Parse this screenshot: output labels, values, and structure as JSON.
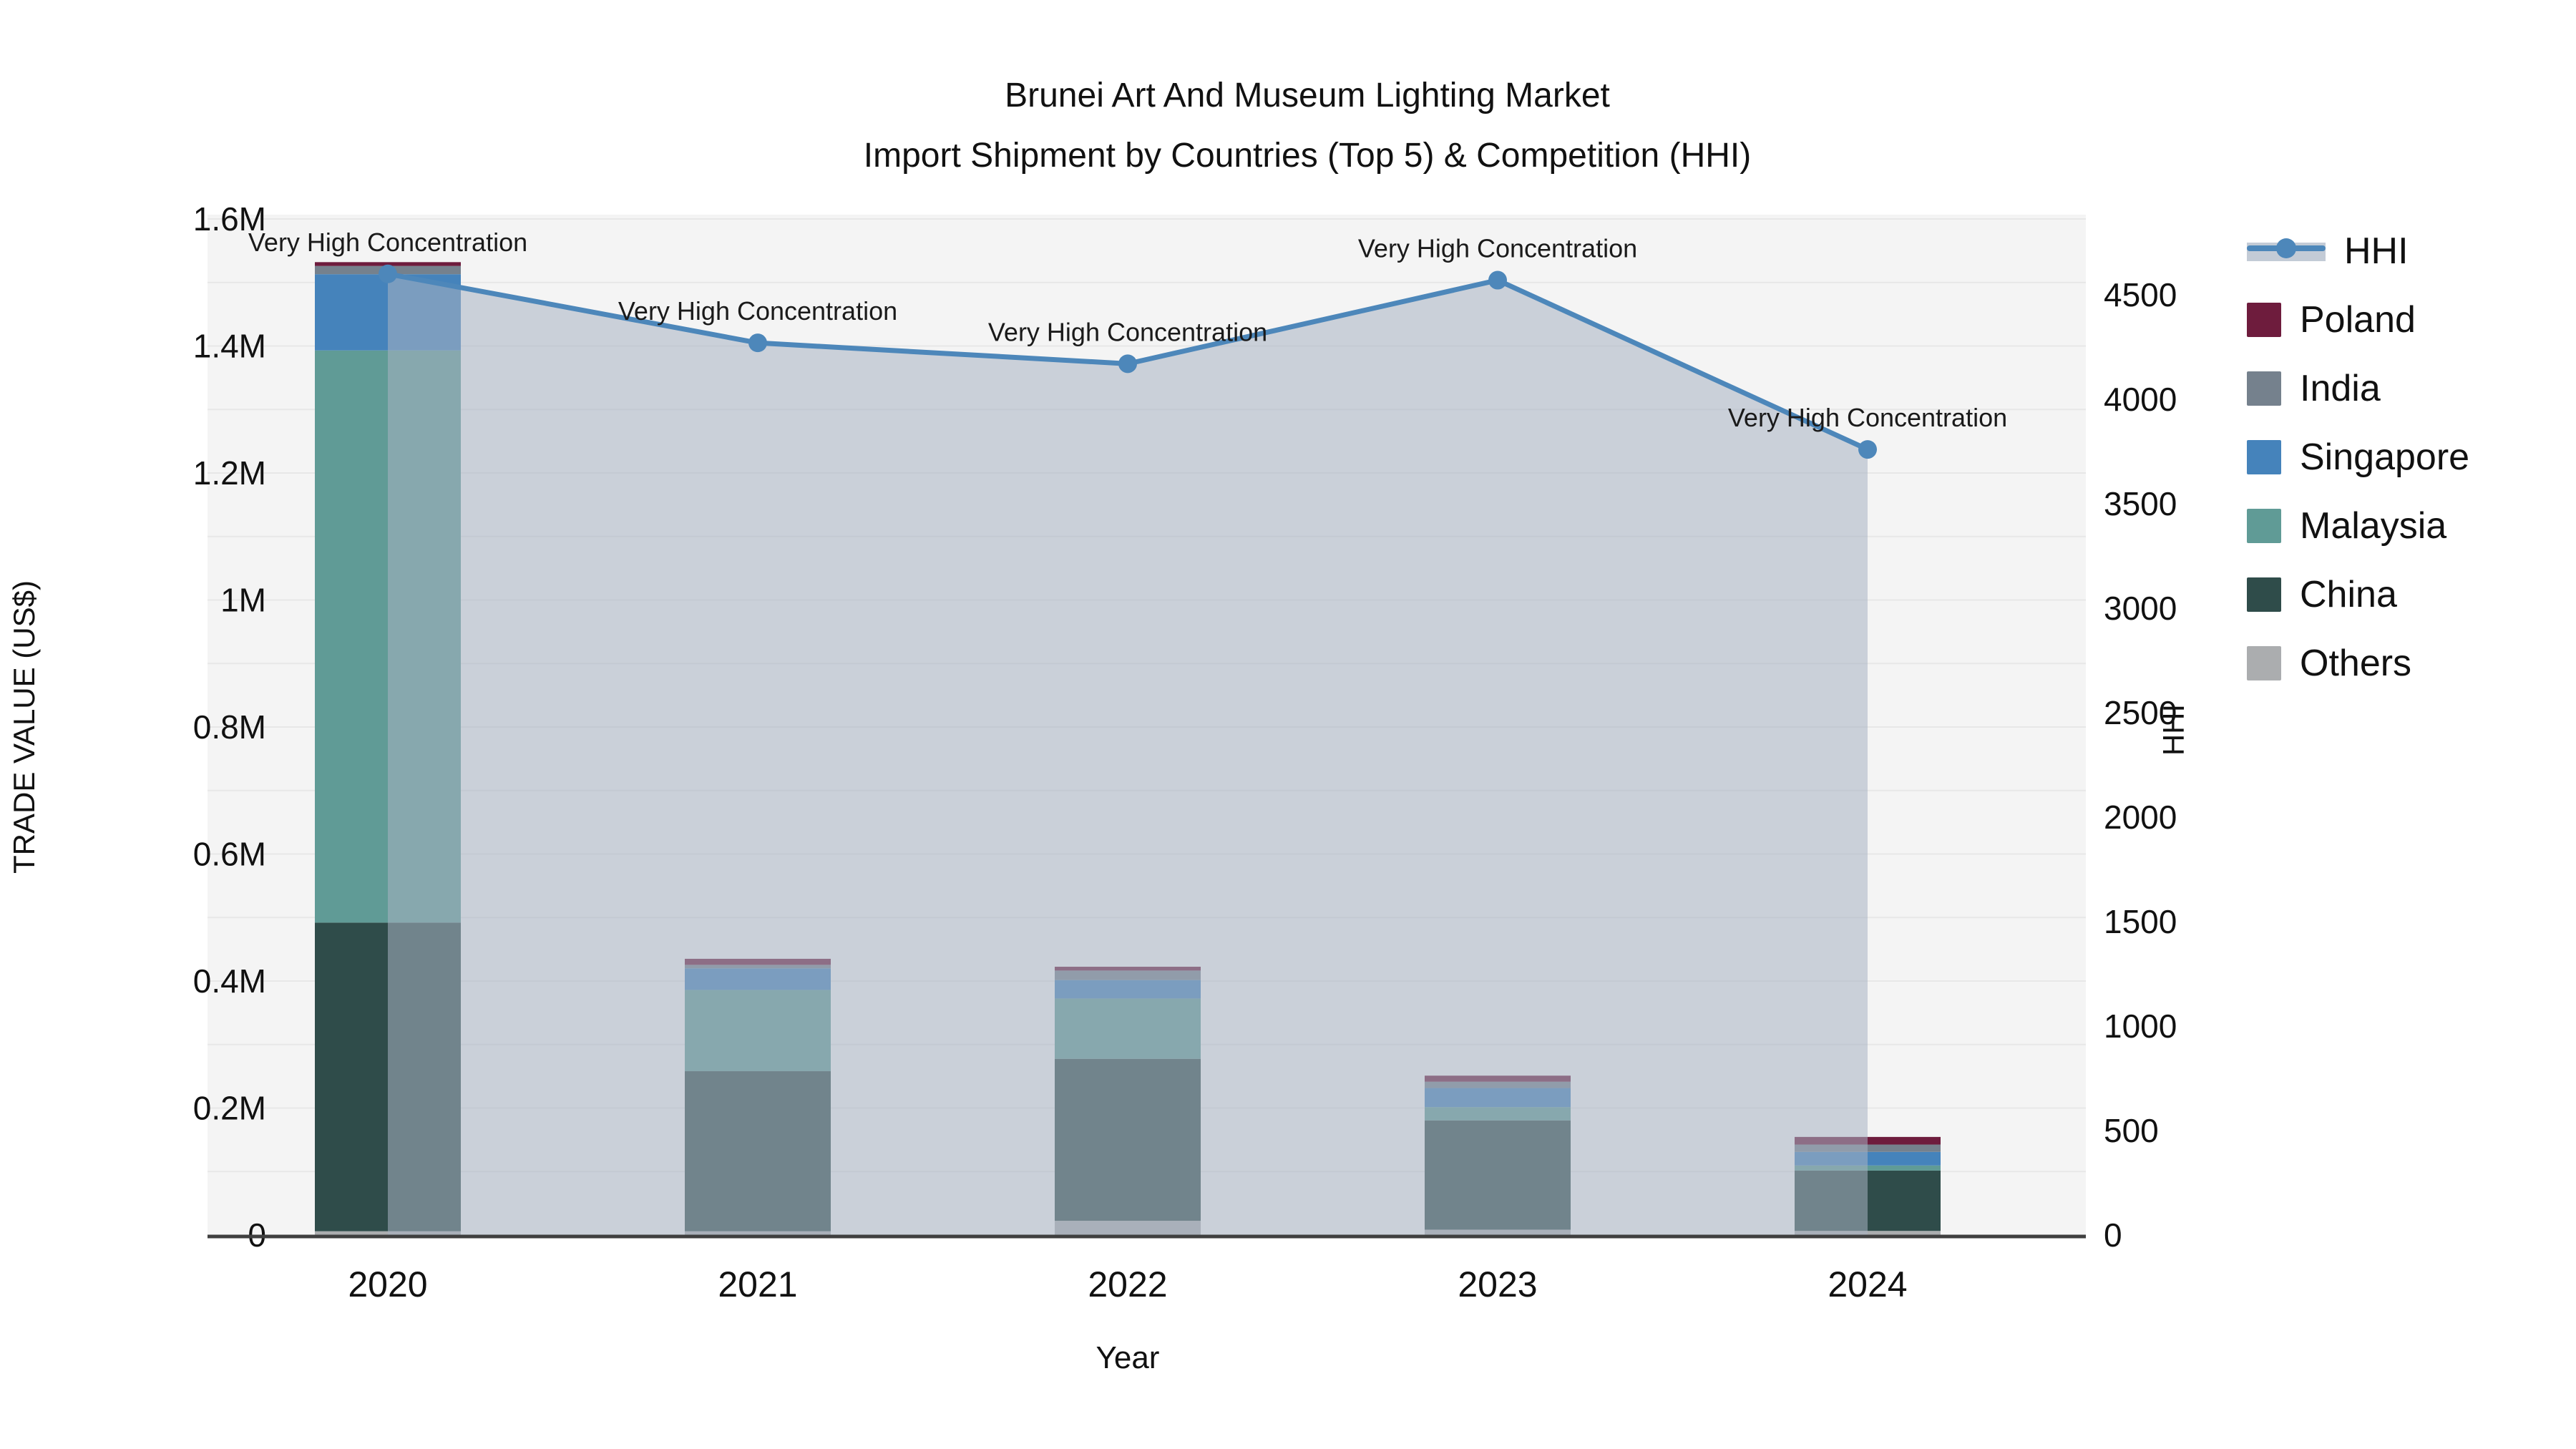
{
  "title": {
    "line1": "Brunei Art And Museum Lighting Market",
    "line2": "Import Shipment by Countries (Top 5) & Competition (HHI)"
  },
  "chart_data": {
    "type": "bar",
    "subtype": "stacked-bars-with-dual-axis-line",
    "categories": [
      "2020",
      "2021",
      "2022",
      "2023",
      "2024"
    ],
    "series": [
      {
        "name": "Others",
        "color": "#ABADAF",
        "values": [
          6000,
          6000,
          22500,
          8500,
          6500
        ]
      },
      {
        "name": "China",
        "color": "#2F4C4A",
        "values": [
          486000,
          252000,
          255000,
          172000,
          95000
        ]
      },
      {
        "name": "Malaysia",
        "color": "#609B96",
        "values": [
          901000,
          128000,
          95000,
          21000,
          8000
        ]
      },
      {
        "name": "Singapore",
        "color": "#4583BB",
        "values": [
          120000,
          34000,
          29000,
          30000,
          21500
        ]
      },
      {
        "name": "India",
        "color": "#75818D",
        "values": [
          13000,
          5500,
          15000,
          10000,
          11500
        ]
      },
      {
        "name": "Poland",
        "color": "#6E1C3D",
        "values": [
          6000,
          9500,
          6000,
          9500,
          12000
        ]
      }
    ],
    "line_series": {
      "name": "HHI",
      "color": "#4D87BA",
      "fill": "rgba(167,179,194,0.55)",
      "values": [
        4600,
        4270,
        4170,
        4570,
        3760
      ]
    },
    "annotations": [
      "Very High Concentration",
      "Very High Concentration",
      "Very High Concentration",
      "Very High Concentration",
      "Very High Concentration"
    ],
    "xlabel": "Year",
    "ylabel_left": "TRADE VALUE (US$)",
    "ylabel_right": "HHI",
    "y_left": {
      "min": 0,
      "max": 1600000,
      "tick_values": [
        0,
        200000,
        400000,
        600000,
        800000,
        1000000,
        1200000,
        1400000,
        1600000
      ],
      "tick_labels": [
        "0",
        "0.2M",
        "0.4M",
        "0.6M",
        "0.8M",
        "1M",
        "1.2M",
        "1.4M",
        "1.6M"
      ],
      "minor_grid_step": 100000
    },
    "y_right": {
      "min": 0,
      "tick_values": [
        0,
        500,
        1000,
        1500,
        2000,
        2500,
        3000,
        3500,
        4000,
        4500
      ],
      "tick_labels": [
        "0",
        "500",
        "1000",
        "1500",
        "2000",
        "2500",
        "3000",
        "3500",
        "4000",
        "4500"
      ]
    },
    "legend": [
      {
        "label": "HHI",
        "type": "line"
      },
      {
        "label": "Poland",
        "type": "box",
        "color": "#6E1C3D"
      },
      {
        "label": "India",
        "type": "box",
        "color": "#75818D"
      },
      {
        "label": "Singapore",
        "type": "box",
        "color": "#4583BB"
      },
      {
        "label": "Malaysia",
        "type": "box",
        "color": "#609B96"
      },
      {
        "label": "China",
        "type": "box",
        "color": "#2F4C4A"
      },
      {
        "label": "Others",
        "type": "box",
        "color": "#ABADAF"
      }
    ],
    "grid": true,
    "legend_position": "right",
    "colors": {
      "plot_bg": "#F4F4F4",
      "grid": "#E7E7E7",
      "axis": "#3F3F3F",
      "text": "#111111"
    }
  }
}
